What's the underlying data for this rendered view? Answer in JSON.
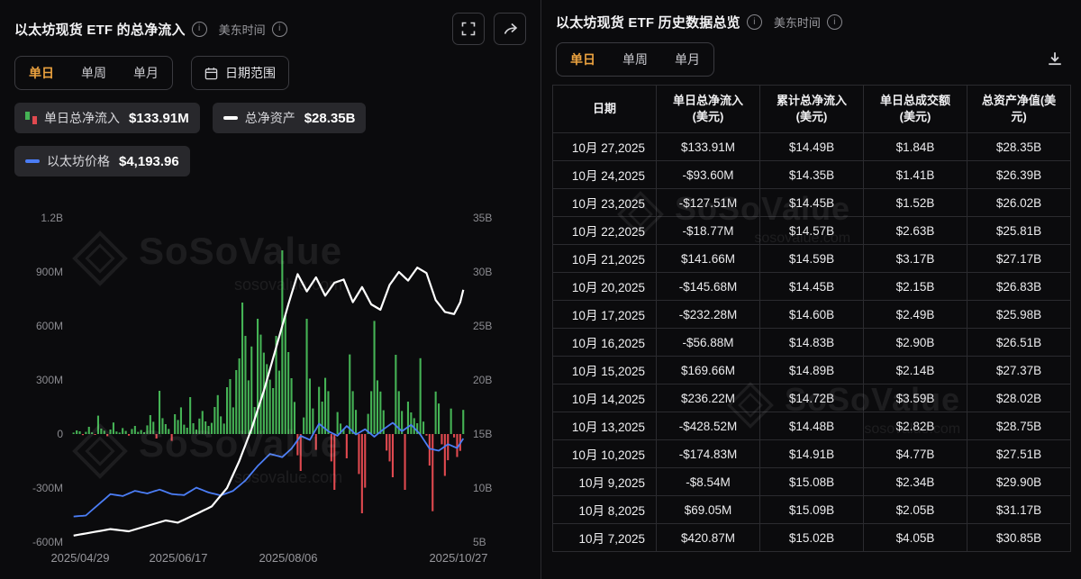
{
  "left_panel": {
    "title": "以太坊现货 ETF 的总净流入",
    "timezone": "美东时间",
    "tabs": [
      {
        "label": "单日",
        "active": true
      },
      {
        "label": "单周",
        "active": false
      },
      {
        "label": "单月",
        "active": false
      }
    ],
    "date_range_button": "日期范围",
    "legend": [
      {
        "label": "单日总净流入",
        "value": "$133.91M"
      },
      {
        "label": "总净资产",
        "value": "$28.35B"
      },
      {
        "label": "以太坊价格",
        "value": "$4,193.96"
      }
    ]
  },
  "chart_data": {
    "type": "bar",
    "title": "以太坊现货 ETF 的总净流入",
    "grid": false,
    "legend_position": "top-left",
    "x_tick_labels": [
      "2025/04/29",
      "2025/06/17",
      "2025/08/06",
      "2025/10/27"
    ],
    "x_tick_positions": [
      0.02,
      0.27,
      0.55,
      0.985
    ],
    "left_axis": {
      "ticks": [
        "1.2B",
        "900M",
        "600M",
        "300M",
        "0",
        "-300M",
        "-600M"
      ],
      "min": -600,
      "max": 1200,
      "unit": "M USD"
    },
    "right_axis": {
      "ticks": [
        "35B",
        "30B",
        "25B",
        "20B",
        "15B",
        "10B",
        "5B"
      ],
      "min": 5,
      "max": 35,
      "unit": "B USD"
    },
    "series": [
      {
        "name": "单日总净流入",
        "type": "bar",
        "axis": "left",
        "unit": "M USD",
        "values": [
          8,
          20,
          15,
          -6,
          12,
          40,
          9,
          -4,
          102,
          30,
          18,
          -12,
          25,
          64,
          14,
          8,
          33,
          17,
          -9,
          28,
          45,
          12,
          22,
          10,
          48,
          105,
          68,
          -25,
          240,
          88,
          55,
          28,
          -38,
          110,
          78,
          148,
          52,
          35,
          205,
          60,
          25,
          86,
          128,
          70,
          45,
          62,
          150,
          216,
          98,
          58,
          260,
          305,
          148,
          355,
          420,
          730,
          545,
          298,
          486,
          150,
          640,
          552,
          452,
          388,
          302,
          255,
          545,
          352,
          1020,
          660,
          455,
          310,
          178,
          -118,
          -205,
          92,
          640,
          308,
          142,
          -88,
          262,
          180,
          312,
          238,
          -152,
          -310,
          122,
          58,
          30,
          -135,
          442,
          238,
          134,
          -222,
          -440,
          -298,
          112,
          238,
          628,
          298,
          236,
          132,
          -92,
          -152,
          -240,
          440,
          238,
          128,
          -310,
          180,
          120,
          88,
          60,
          420.87,
          69.05,
          -8.54,
          -174.83,
          -428.52,
          236.22,
          169.66,
          -56.88,
          -232.28,
          -145.68,
          141.66,
          -18.77,
          -127.51,
          -93.6,
          133.91
        ]
      },
      {
        "name": "总净资产",
        "type": "line",
        "axis": "right",
        "unit": "B USD",
        "keypoints": [
          [
            0,
            5.6
          ],
          [
            6,
            5.9
          ],
          [
            12,
            6.2
          ],
          [
            18,
            6.0
          ],
          [
            24,
            6.5
          ],
          [
            30,
            7.0
          ],
          [
            34,
            6.8
          ],
          [
            40,
            7.6
          ],
          [
            45,
            8.3
          ],
          [
            50,
            10.0
          ],
          [
            54,
            12.5
          ],
          [
            58,
            15.5
          ],
          [
            62,
            19.0
          ],
          [
            66,
            23.0
          ],
          [
            70,
            27.0
          ],
          [
            73,
            29.8
          ],
          [
            76,
            28.2
          ],
          [
            79,
            29.5
          ],
          [
            82,
            27.8
          ],
          [
            85,
            29.0
          ],
          [
            88,
            29.3
          ],
          [
            91,
            27.2
          ],
          [
            94,
            28.6
          ],
          [
            97,
            27.0
          ],
          [
            100,
            26.5
          ],
          [
            103,
            28.8
          ],
          [
            106,
            30.0
          ],
          [
            109,
            29.2
          ],
          [
            112,
            30.4
          ],
          [
            115,
            29.9
          ],
          [
            118,
            27.4
          ],
          [
            121,
            26.3
          ],
          [
            124,
            26.1
          ],
          [
            126,
            27.2
          ],
          [
            127,
            28.35
          ]
        ]
      },
      {
        "name": "以太坊价格",
        "type": "line",
        "axis": "price",
        "unit": "USD",
        "price_axis_range": [
          1000,
          11000
        ],
        "keypoints": [
          [
            0,
            1790
          ],
          [
            4,
            1820
          ],
          [
            8,
            2150
          ],
          [
            12,
            2480
          ],
          [
            16,
            2420
          ],
          [
            20,
            2580
          ],
          [
            24,
            2500
          ],
          [
            28,
            2620
          ],
          [
            32,
            2480
          ],
          [
            36,
            2450
          ],
          [
            40,
            2680
          ],
          [
            44,
            2530
          ],
          [
            48,
            2440
          ],
          [
            52,
            2580
          ],
          [
            56,
            2900
          ],
          [
            60,
            3350
          ],
          [
            64,
            3720
          ],
          [
            68,
            3620
          ],
          [
            71,
            3880
          ],
          [
            74,
            4280
          ],
          [
            77,
            4150
          ],
          [
            80,
            4650
          ],
          [
            83,
            4420
          ],
          [
            86,
            4280
          ],
          [
            89,
            4580
          ],
          [
            92,
            4320
          ],
          [
            95,
            4480
          ],
          [
            98,
            4250
          ],
          [
            101,
            4480
          ],
          [
            104,
            4680
          ],
          [
            107,
            4420
          ],
          [
            110,
            4620
          ],
          [
            113,
            4320
          ],
          [
            116,
            3880
          ],
          [
            119,
            3820
          ],
          [
            122,
            4020
          ],
          [
            125,
            3900
          ],
          [
            127,
            4193.96
          ]
        ]
      }
    ]
  },
  "right_panel": {
    "title": "以太坊现货 ETF 历史数据总览",
    "timezone": "美东时间",
    "tabs": [
      {
        "label": "单日",
        "active": true
      },
      {
        "label": "单周",
        "active": false
      },
      {
        "label": "单月",
        "active": false
      }
    ],
    "table": {
      "headers": [
        [
          "日期"
        ],
        [
          "单日总净流入",
          "(美元)"
        ],
        [
          "累计总净流入",
          "(美元)"
        ],
        [
          "单日总成交额",
          "(美元)"
        ],
        [
          "总资产净值(美",
          "元)"
        ]
      ],
      "rows": [
        {
          "date": "10月 27,2025",
          "inflow": "$133.91M",
          "cumulative": "$14.49B",
          "volume": "$1.84B",
          "nav": "$28.35B"
        },
        {
          "date": "10月 24,2025",
          "inflow": "-$93.60M",
          "cumulative": "$14.35B",
          "volume": "$1.41B",
          "nav": "$26.39B"
        },
        {
          "date": "10月 23,2025",
          "inflow": "-$127.51M",
          "cumulative": "$14.45B",
          "volume": "$1.52B",
          "nav": "$26.02B"
        },
        {
          "date": "10月 22,2025",
          "inflow": "-$18.77M",
          "cumulative": "$14.57B",
          "volume": "$2.63B",
          "nav": "$25.81B"
        },
        {
          "date": "10月 21,2025",
          "inflow": "$141.66M",
          "cumulative": "$14.59B",
          "volume": "$3.17B",
          "nav": "$27.17B"
        },
        {
          "date": "10月 20,2025",
          "inflow": "-$145.68M",
          "cumulative": "$14.45B",
          "volume": "$2.15B",
          "nav": "$26.83B"
        },
        {
          "date": "10月 17,2025",
          "inflow": "-$232.28M",
          "cumulative": "$14.60B",
          "volume": "$2.49B",
          "nav": "$25.98B"
        },
        {
          "date": "10月 16,2025",
          "inflow": "-$56.88M",
          "cumulative": "$14.83B",
          "volume": "$2.90B",
          "nav": "$26.51B"
        },
        {
          "date": "10月 15,2025",
          "inflow": "$169.66M",
          "cumulative": "$14.89B",
          "volume": "$2.14B",
          "nav": "$27.37B"
        },
        {
          "date": "10月 14,2025",
          "inflow": "$236.22M",
          "cumulative": "$14.72B",
          "volume": "$3.59B",
          "nav": "$28.02B"
        },
        {
          "date": "10月 13,2025",
          "inflow": "-$428.52M",
          "cumulative": "$14.48B",
          "volume": "$2.82B",
          "nav": "$28.75B"
        },
        {
          "date": "10月 10,2025",
          "inflow": "-$174.83M",
          "cumulative": "$14.91B",
          "volume": "$4.77B",
          "nav": "$27.51B"
        },
        {
          "date": "10月 9,2025",
          "inflow": "-$8.54M",
          "cumulative": "$15.08B",
          "volume": "$2.34B",
          "nav": "$29.90B"
        },
        {
          "date": "10月 8,2025",
          "inflow": "$69.05M",
          "cumulative": "$15.09B",
          "volume": "$2.05B",
          "nav": "$31.17B"
        },
        {
          "date": "10月 7,2025",
          "inflow": "$420.87M",
          "cumulative": "$15.02B",
          "volume": "$4.05B",
          "nav": "$30.85B"
        }
      ]
    }
  },
  "watermark": {
    "brand": "SoSoValue",
    "domain": "sosovalue.com"
  },
  "colors": {
    "accent": "#EBA23F",
    "green": "#45B355",
    "red": "#E0494F",
    "assets_line": "#FFFFFF",
    "price_line": "#4B7DF5",
    "positive_text": "#3DB154",
    "negative_text": "#E0494F"
  }
}
